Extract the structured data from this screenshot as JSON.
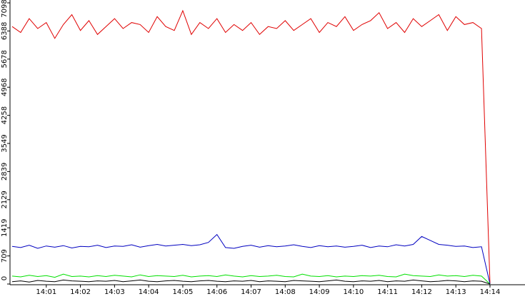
{
  "chart_data": {
    "type": "line",
    "categories": [
      null,
      null,
      null,
      null,
      "14:01",
      null,
      null,
      null,
      "14:02",
      null,
      null,
      null,
      "14:03",
      null,
      null,
      null,
      "14:04",
      null,
      null,
      null,
      "14:05",
      null,
      null,
      null,
      "14:06",
      null,
      null,
      null,
      "14:07",
      null,
      null,
      null,
      "14:08",
      null,
      null,
      null,
      "14:09",
      null,
      null,
      null,
      "14:10",
      null,
      null,
      null,
      "14:11",
      null,
      null,
      null,
      "14:12",
      null,
      null,
      null,
      "14:13",
      null,
      null,
      null,
      "14:14"
    ],
    "series": [
      {
        "color": "#e00000",
        "values": [
          6500,
          6350,
          6700,
          6450,
          6600,
          6200,
          6550,
          6800,
          6400,
          6650,
          6300,
          6500,
          6700,
          6450,
          6600,
          6550,
          6350,
          6750,
          6500,
          6400,
          6900,
          6300,
          6600,
          6450,
          6700,
          6350,
          6550,
          6400,
          6600,
          6300,
          6500,
          6450,
          6650,
          6400,
          6550,
          6700,
          6350,
          6600,
          6500,
          6750,
          6400,
          6550,
          6650,
          6850,
          6450,
          6600,
          6350,
          6700,
          6500,
          6650,
          6800,
          6400,
          6750,
          6550,
          6600,
          6450,
          0
        ]
      },
      {
        "color": "#0000c0",
        "values": [
          950,
          920,
          980,
          900,
          960,
          930,
          970,
          910,
          950,
          940,
          980,
          920,
          960,
          950,
          990,
          930,
          970,
          1000,
          960,
          980,
          1000,
          970,
          990,
          1050,
          1250,
          920,
          900,
          950,
          980,
          930,
          970,
          940,
          960,
          990,
          950,
          920,
          970,
          940,
          960,
          930,
          950,
          980,
          920,
          960,
          940,
          990,
          960,
          1000,
          1200,
          1100,
          1000,
          980,
          950,
          960,
          920,
          940,
          0
        ]
      },
      {
        "color": "#00e000",
        "values": [
          200,
          180,
          220,
          190,
          210,
          170,
          250,
          190,
          200,
          180,
          210,
          190,
          220,
          200,
          180,
          230,
          190,
          210,
          200,
          190,
          220,
          180,
          200,
          210,
          190,
          230,
          200,
          180,
          210,
          190,
          200,
          220,
          190,
          180,
          250,
          200,
          190,
          210,
          180,
          200,
          190,
          210,
          200,
          220,
          190,
          180,
          250,
          210,
          200,
          190,
          230,
          200,
          210,
          190,
          220,
          200,
          0
        ]
      },
      {
        "color": "#000000",
        "values": [
          60,
          80,
          50,
          90,
          70,
          60,
          100,
          80,
          70,
          60,
          80,
          70,
          90,
          60,
          80,
          100,
          70,
          60,
          80,
          90,
          70,
          60,
          80,
          90,
          70,
          60,
          80,
          70,
          90,
          60,
          80,
          70,
          60,
          90,
          80,
          70,
          60,
          80,
          100,
          70,
          60,
          80,
          70,
          90,
          60,
          80,
          70,
          100,
          80,
          60,
          70,
          90,
          80,
          60,
          80,
          70,
          0
        ]
      }
    ],
    "ylim": [
      0,
      7170
    ],
    "yticks": [
      0,
      709,
      1419,
      2129,
      2839,
      3549,
      4258,
      4968,
      5678,
      6388,
      7098
    ]
  }
}
